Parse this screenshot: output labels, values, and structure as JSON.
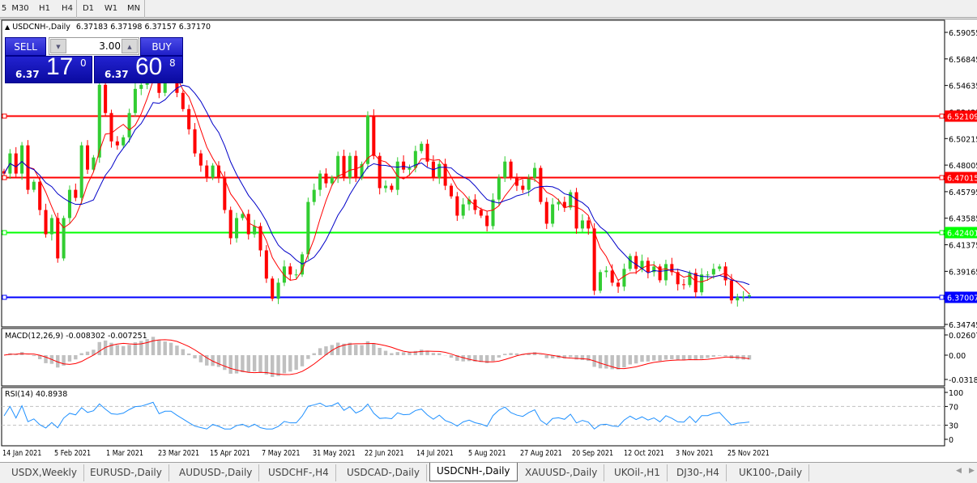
{
  "timeframes": [
    {
      "label": "5"
    },
    {
      "label": "M30"
    },
    {
      "label": "H1"
    },
    {
      "label": "H4"
    },
    {
      "label": "D1",
      "active": true
    },
    {
      "label": "W1"
    },
    {
      "label": "MN"
    }
  ],
  "chart_title": {
    "symbol": "USDCNH-,Daily",
    "ohlc": "6.37183 6.37198 6.37157 6.37170"
  },
  "trade_panel": {
    "sell_label": "SELL",
    "buy_label": "BUY",
    "lot": "3.00",
    "sell_prefix": "6.37",
    "sell_big": "17",
    "sell_sup": "0",
    "buy_prefix": "6.37",
    "buy_big": "60",
    "buy_sup": "8",
    "down_icon": "triangle-down",
    "up_icon": "triangle-up"
  },
  "colors": {
    "bull": "#32cd32",
    "bear": "#ff0000",
    "ma_fast": "#ff0000",
    "ma_slow": "#0000c8",
    "macd_hist": "#c0c0c0",
    "macd_signal": "#ff0000",
    "rsi": "#1e90ff"
  },
  "macd_label": "MACD(12,26,9) -0.008302 -0.007251",
  "rsi_label": "RSI(14) 40.8938",
  "chart_data": {
    "type": "candlestick",
    "symbol": "USDCNH-",
    "timeframe": "Daily",
    "ylim": [
      6.34745,
      6.59055
    ],
    "y_ticks": [
      "6.59055",
      "6.56845",
      "6.54635",
      "6.52425",
      "6.50215",
      "6.48005",
      "6.45795",
      "6.43585",
      "6.41375",
      "6.39165",
      "6.34745"
    ],
    "x_ticks": [
      "14 Jan 2021",
      "5 Feb 2021",
      "1 Mar 2021",
      "23 Mar 2021",
      "15 Apr 2021",
      "7 May 2021",
      "31 May 2021",
      "22 Jun 2021",
      "14 Jul 2021",
      "5 Aug 2021",
      "27 Aug 2021",
      "20 Sep 2021",
      "12 Oct 2021",
      "3 Nov 2021",
      "25 Nov 2021"
    ],
    "closes": [
      6.473,
      6.4898,
      6.473,
      6.4965,
      6.4595,
      6.4662,
      6.4427,
      6.4225,
      6.436,
      6.4024,
      6.436,
      6.4595,
      6.4528,
      6.4965,
      6.4763,
      6.4864,
      6.5469,
      6.5234,
      6.4998,
      6.4965,
      6.5032,
      6.5234,
      6.5435,
      6.5469,
      6.5603,
      6.5771,
      6.5402,
      6.5536,
      6.5536,
      6.5402,
      6.5267,
      6.5099,
      6.4898,
      6.4797,
      6.4696,
      6.4797,
      6.4696,
      6.4427,
      6.4192,
      6.436,
      6.4394,
      6.4225,
      6.4293,
      6.4091,
      6.3856,
      6.3688,
      6.3822,
      6.3957,
      6.389,
      6.389,
      6.4058,
      6.4494,
      6.4595,
      6.473,
      6.4649,
      6.4696,
      6.4877,
      6.4696,
      6.4877,
      6.4696,
      6.481,
      6.5213,
      6.4877,
      6.4609,
      6.4629,
      6.4595,
      6.483,
      6.4763,
      6.4777,
      6.4918,
      6.4978,
      6.483,
      6.4696,
      6.481,
      6.4629,
      6.4541,
      6.438,
      6.4474,
      6.4514,
      6.4427,
      6.438,
      6.4293,
      6.4514,
      6.4696,
      6.483,
      6.4696,
      6.4629,
      6.4595,
      6.4696,
      6.4777,
      6.4494,
      6.4313,
      6.4474,
      6.4494,
      6.4447,
      6.4575,
      6.4273,
      6.434,
      6.4273,
      6.3755,
      6.391,
      6.3923,
      6.3822,
      6.3789,
      6.3937,
      6.4044,
      6.3937,
      6.4004,
      6.391,
      6.3957,
      6.3842,
      6.3977,
      6.391,
      6.3809,
      6.3802,
      6.3903,
      6.3742,
      6.389,
      6.389,
      6.3937,
      6.3957,
      6.3842,
      6.3675,
      6.3702,
      6.3708,
      6.3717
    ],
    "levels": [
      {
        "price": "6.52109",
        "color": "#ff0000"
      },
      {
        "price": "6.47015",
        "color": "#ff0000"
      },
      {
        "price": "6.42401",
        "color": "#00ff00"
      },
      {
        "price": "6.37007",
        "color": "#0000ff"
      }
    ],
    "indicators": {
      "ma": [
        {
          "type": "moving average",
          "color": "#ff0000"
        },
        {
          "type": "moving average",
          "color": "#0000c8"
        }
      ],
      "macd": {
        "params": "12,26,9",
        "value": -0.008302,
        "signal": -0.007251,
        "ticks": [
          "0.02607",
          "0.00",
          "-0.03187"
        ],
        "ylim": [
          -0.03187,
          0.02607
        ]
      },
      "rsi": {
        "period": 14,
        "value": 40.8938,
        "ticks": [
          "100",
          "70",
          "30",
          "0"
        ],
        "levels": [
          70,
          30
        ]
      }
    }
  },
  "tabs": [
    {
      "label": "USDX,Weekly"
    },
    {
      "label": "EURUSD-,Daily"
    },
    {
      "label": "AUDUSD-,Daily"
    },
    {
      "label": "USDCHF-,H4"
    },
    {
      "label": "USDCAD-,Daily"
    },
    {
      "label": "USDCNH-,Daily",
      "active": true
    },
    {
      "label": "XAUUSD-,Daily"
    },
    {
      "label": "UKOil-,H1"
    },
    {
      "label": "DJ30-,H4"
    },
    {
      "label": "UK100-,Daily"
    }
  ]
}
